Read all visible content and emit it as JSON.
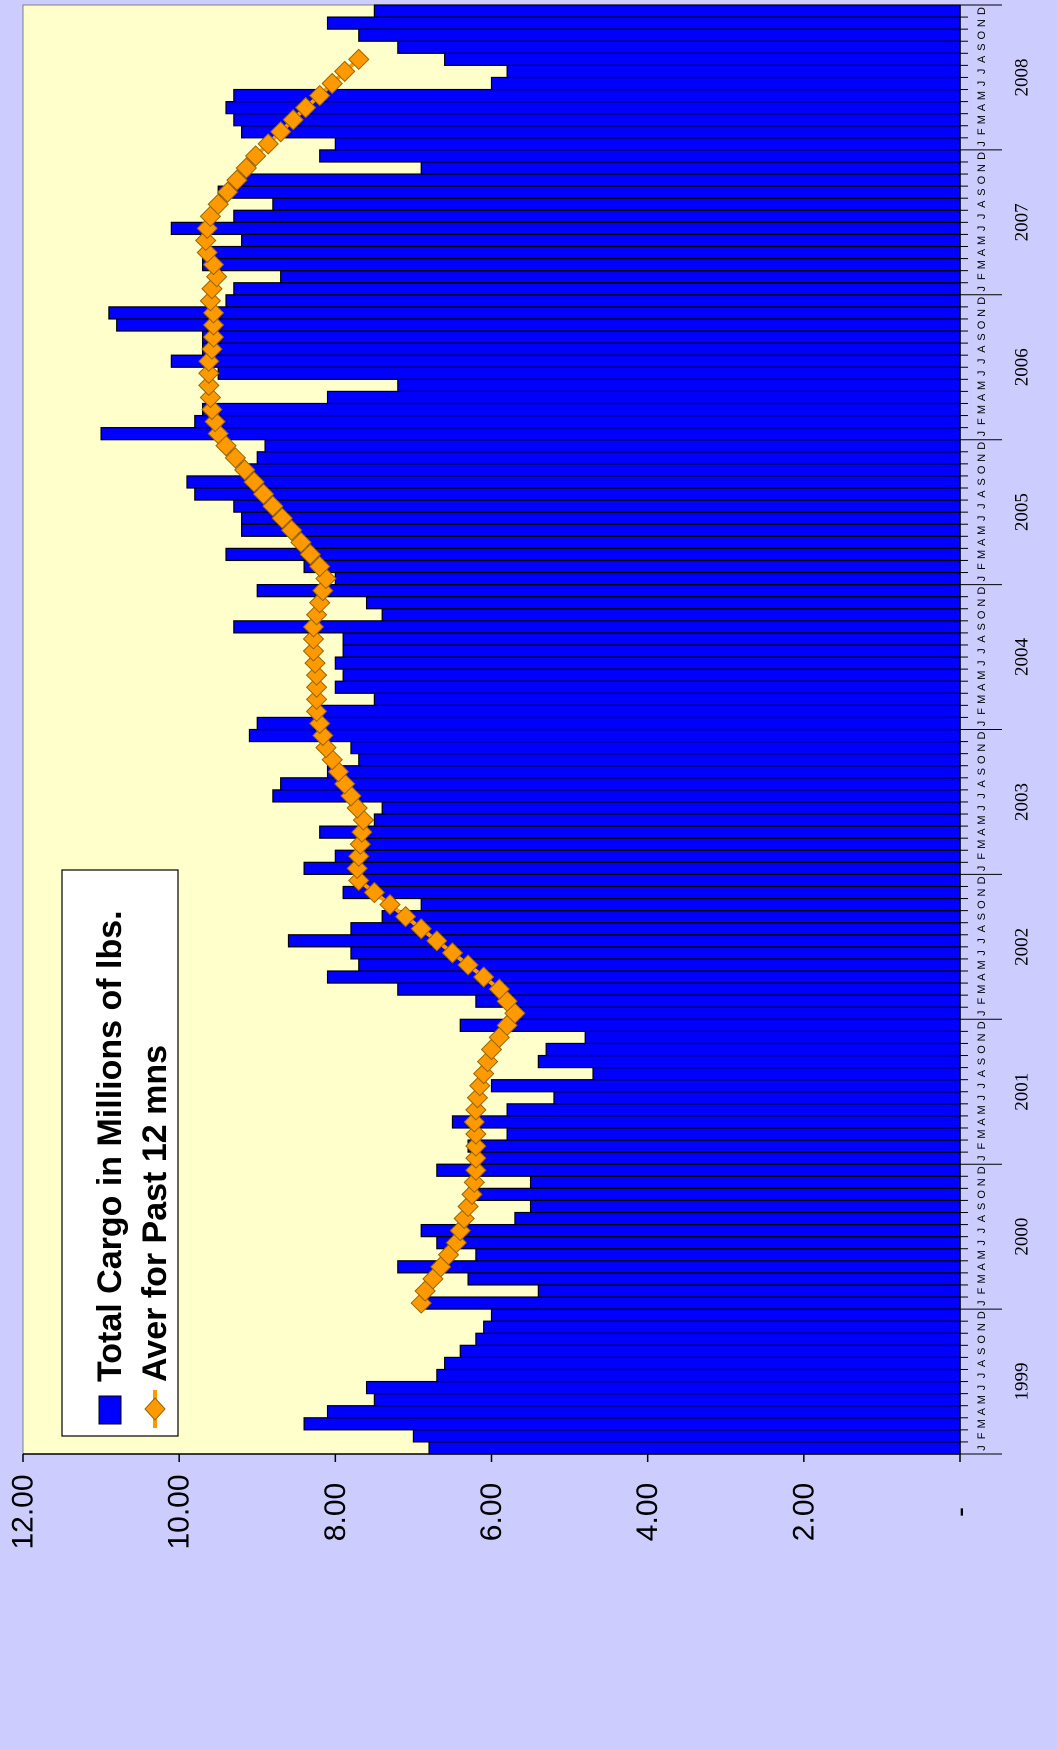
{
  "colors": {
    "page_background": "#ccccff",
    "plot_background": "#ffffcc",
    "bar_fill": "#0000ff",
    "bar_stroke": "#000000",
    "line_color": "#ff9900",
    "marker_fill": "#ff9900"
  },
  "chart_data": {
    "type": "bar",
    "orientation": "rotated 90 degrees (values read right-to-left, time runs top-to-bottom toward bottom-of-image = earliest)",
    "y_tick_labels": [
      "12.00",
      "10.00",
      "8.00",
      "6.00",
      "4.00",
      "2.00",
      "-"
    ],
    "y_ticks": [
      12,
      10,
      8,
      6,
      4,
      2,
      0
    ],
    "ylim": [
      0,
      12
    ],
    "years": [
      "1999",
      "2000",
      "2001",
      "2002",
      "2003",
      "2004",
      "2005",
      "2006",
      "2007",
      "2008"
    ],
    "months_per_year": [
      "J",
      "F",
      "M",
      "A",
      "M",
      "J",
      "J",
      "A",
      "S",
      "O",
      "N",
      "D"
    ],
    "grid": false,
    "legend_position": "top-left",
    "series": [
      {
        "name": "Total Cargo in Millions of lbs.",
        "type": "bar",
        "values": [
          6.8,
          7.0,
          8.4,
          8.1,
          7.5,
          7.6,
          6.7,
          6.6,
          6.4,
          6.2,
          6.1,
          6.0,
          6.9,
          5.4,
          6.3,
          7.2,
          6.2,
          6.7,
          6.9,
          5.7,
          5.5,
          6.3,
          5.5,
          6.7,
          6.2,
          6.3,
          5.8,
          6.5,
          5.8,
          5.2,
          6.0,
          4.7,
          5.4,
          5.3,
          4.8,
          6.4,
          5.7,
          6.2,
          7.2,
          8.1,
          7.7,
          7.8,
          8.6,
          7.8,
          7.4,
          6.9,
          7.9,
          7.7,
          8.4,
          8.0,
          7.6,
          8.2,
          7.5,
          7.4,
          8.8,
          8.7,
          8.1,
          7.7,
          7.8,
          9.1,
          9.0,
          8.2,
          7.5,
          8.0,
          7.9,
          8.0,
          7.9,
          7.9,
          9.3,
          7.4,
          7.6,
          9.0,
          8.0,
          8.4,
          9.4,
          8.4,
          9.2,
          9.2,
          9.3,
          9.8,
          9.9,
          9.1,
          9.0,
          8.9,
          11.0,
          9.8,
          9.7,
          8.1,
          7.2,
          9.5,
          10.1,
          9.7,
          9.7,
          10.8,
          10.9,
          9.4,
          9.3,
          8.7,
          9.7,
          9.7,
          9.2,
          10.1,
          9.3,
          8.8,
          9.5,
          9.3,
          6.9,
          8.2,
          8.0,
          9.2,
          9.3,
          9.4,
          9.3,
          6.0,
          5.8,
          6.6,
          7.2,
          7.7,
          8.1,
          7.5
        ]
      },
      {
        "name": "Aver for Past 12 mns",
        "type": "line",
        "start_index": 12,
        "values": [
          6.9,
          6.85,
          6.75,
          6.65,
          6.55,
          6.45,
          6.4,
          6.35,
          6.3,
          6.25,
          6.22,
          6.2,
          6.2,
          6.2,
          6.2,
          6.22,
          6.2,
          6.18,
          6.15,
          6.1,
          6.05,
          6.0,
          5.9,
          5.8,
          5.7,
          5.8,
          5.9,
          6.1,
          6.3,
          6.5,
          6.7,
          6.9,
          7.1,
          7.3,
          7.5,
          7.7,
          7.72,
          7.7,
          7.68,
          7.66,
          7.64,
          7.72,
          7.8,
          7.88,
          7.96,
          8.04,
          8.12,
          8.16,
          8.2,
          8.24,
          8.24,
          8.24,
          8.24,
          8.26,
          8.28,
          8.28,
          8.28,
          8.24,
          8.2,
          8.16,
          8.12,
          8.2,
          8.32,
          8.44,
          8.56,
          8.68,
          8.8,
          8.92,
          9.04,
          9.16,
          9.28,
          9.4,
          9.5,
          9.54,
          9.58,
          9.6,
          9.62,
          9.62,
          9.62,
          9.58,
          9.56,
          9.56,
          9.56,
          9.6,
          9.58,
          9.52,
          9.56,
          9.64,
          9.66,
          9.64,
          9.6,
          9.5,
          9.38,
          9.26,
          9.14,
          9.02,
          8.86,
          8.7,
          8.54,
          8.38,
          8.2,
          8.04,
          7.88,
          7.7
        ]
      }
    ]
  },
  "legend": {
    "bar_label": "Total Cargo in Millions of lbs.",
    "line_label": "Aver for Past 12 mns"
  }
}
